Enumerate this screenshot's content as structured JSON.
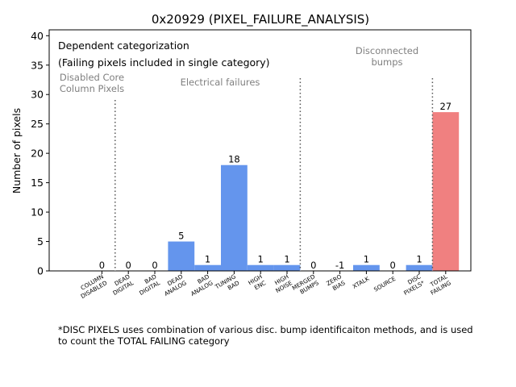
{
  "chart_data": {
    "type": "bar",
    "title": "0x20929 (PIXEL_FAILURE_ANALYSIS)",
    "xlabel": "",
    "ylabel": "Number of pixels",
    "ylim": [
      0,
      41
    ],
    "yticks": [
      0,
      5,
      10,
      15,
      20,
      25,
      30,
      35,
      40
    ],
    "categories": [
      "COLUMN\nDISABLED",
      "DEAD\nDIGITAL",
      "BAD\nDIGITAL",
      "DEAD\nANALOG",
      "BAD\nANALOG",
      "TUNING\nBAD",
      "HIGH\nENC",
      "HIGH\nNOISE",
      "MERGED\nBUMPS",
      "ZERO\nBIAS",
      "XTALK",
      "SOURCE",
      "DISC\nPIXELS*",
      "TOTAL\nFAILING"
    ],
    "values": [
      0,
      0,
      0,
      5,
      1,
      18,
      1,
      1,
      0,
      -1,
      1,
      0,
      1,
      27
    ],
    "value_labels": [
      "0",
      "0",
      "0",
      "5",
      "1",
      "18",
      "1",
      "1",
      "0",
      "-1",
      "1",
      "0",
      "1",
      "27"
    ],
    "bar_colors": [
      "#6495ed",
      "#6495ed",
      "#6495ed",
      "#6495ed",
      "#6495ed",
      "#6495ed",
      "#6495ed",
      "#6495ed",
      "#6495ed",
      "#6495ed",
      "#6495ed",
      "#6495ed",
      "#6495ed",
      "#f08080"
    ],
    "legend_text": [
      "Dependent categorization",
      "(Failing pixels included in single category)"
    ],
    "section_labels": [
      {
        "text": "Disabled Core\nColumn Pixels",
        "id": "disabled-core"
      },
      {
        "text": "Electrical failures",
        "id": "electrical"
      },
      {
        "text": "Disconnected\nbumps",
        "id": "disconnected"
      }
    ],
    "divider_after_index": [
      0,
      7,
      12
    ]
  },
  "footnote": "*DISC PIXELS uses combination of various disc. bump identificaiton methods, and is used\nto count the TOTAL FAILING category"
}
